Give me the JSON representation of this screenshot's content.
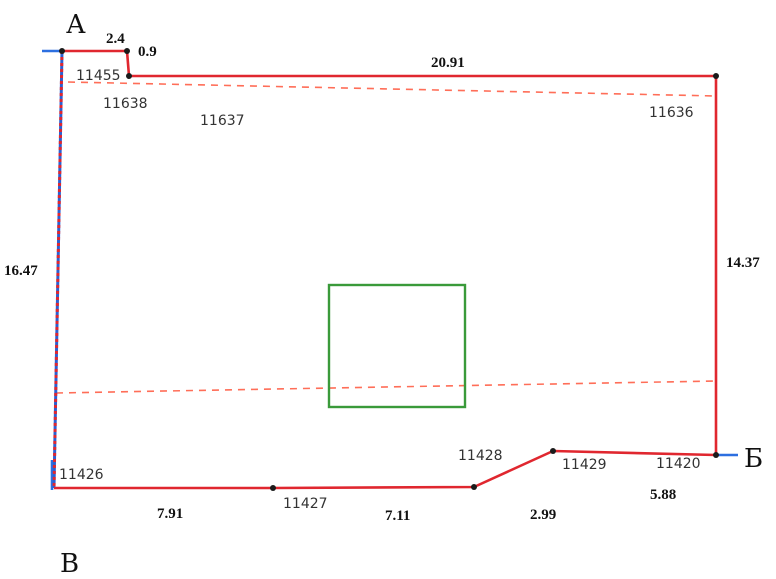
{
  "corners": {
    "a": "А",
    "b": "Б",
    "v": "В"
  },
  "dimensions": {
    "top_short": "2.4",
    "top_step": "0.9",
    "top_long": "20.91",
    "left": "16.47",
    "right": "14.37",
    "bottom_1": "7.91",
    "bottom_2": "7.11",
    "bottom_3": "2.99",
    "bottom_4": "5.88"
  },
  "parcels": {
    "p11455": "11455",
    "p11638": "11638",
    "p11637": "11637",
    "p11636": "11636",
    "p11426": "11426",
    "p11427": "11427",
    "p11428": "11428",
    "p11429": "11429",
    "p11420": "11420"
  },
  "colors": {
    "boundary": "#e0272f",
    "neighbor_line": "#2c6fe0",
    "dashed_line": "#ff6e58",
    "building": "#3a9a3a"
  }
}
